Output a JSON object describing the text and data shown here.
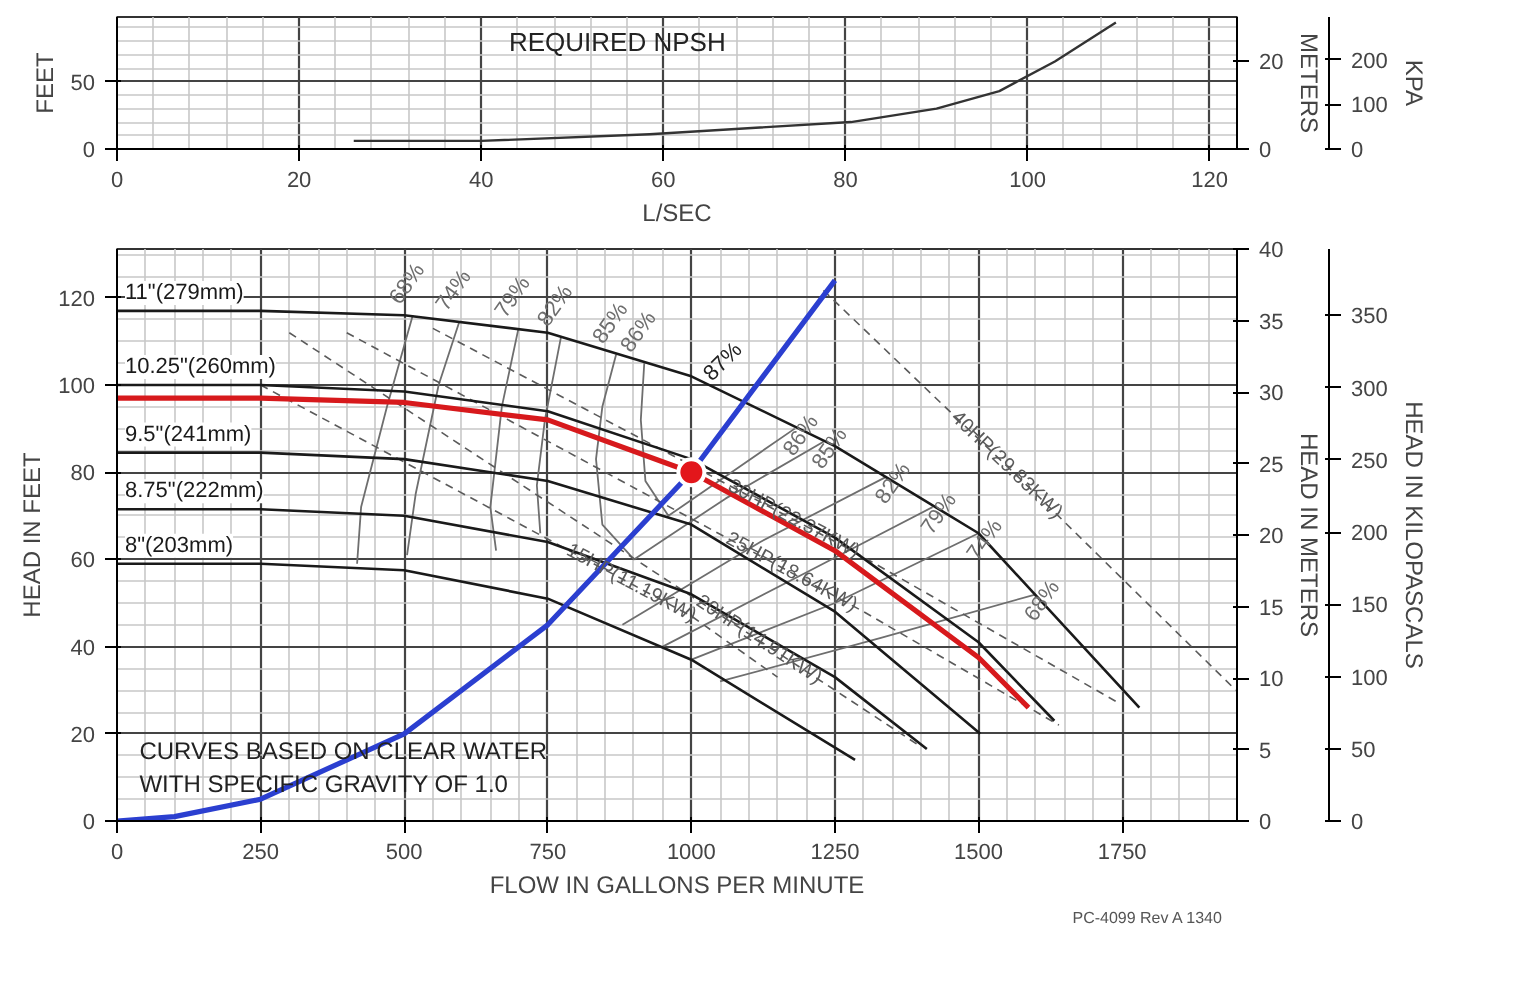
{
  "chart_data": [
    {
      "type": "line",
      "xlabel": "L/SEC",
      "ylabel": "FEET",
      "y2label": "METERS",
      "y3label": "KPA",
      "xlim": [
        0,
        123
      ],
      "xticks": [
        0,
        20,
        40,
        60,
        80,
        100,
        120
      ],
      "ylim": [
        0,
        98
      ],
      "yticks": [
        0,
        50
      ],
      "y2lim": [
        0,
        30
      ],
      "y2ticks": [
        0,
        20
      ],
      "y3lim": [
        0,
        295
      ],
      "y3ticks": [
        0,
        100,
        200
      ],
      "grid": true,
      "annotations": [
        "REQUIRED NPSH"
      ],
      "series": [
        {
          "color": "#333333",
          "line_style": "solid",
          "x": [
            26,
            40,
            58.5,
            80.6,
            90,
            96.9,
            103,
            109.7
          ],
          "values": [
            6,
            6,
            11,
            20,
            30,
            43,
            65,
            94
          ]
        }
      ]
    },
    {
      "type": "line",
      "xlabel": "FLOW IN GALLONS PER MINUTE",
      "ylabel": "HEAD IN FEET",
      "y2label": "HEAD IN METERS",
      "y3label": "HEAD IN KILOPASCALS",
      "xlim": [
        0,
        1950
      ],
      "xticks": [
        0,
        250,
        500,
        750,
        1000,
        1250,
        1500,
        1750
      ],
      "ylim": [
        0,
        131.2
      ],
      "yticks": [
        0,
        20,
        40,
        60,
        80,
        100,
        120
      ],
      "y2lim": [
        0,
        40
      ],
      "y2ticks": [
        0,
        5,
        10,
        15,
        20,
        25,
        30,
        35,
        40
      ],
      "y3lim": [
        0,
        396
      ],
      "y3ticks": [
        0,
        50,
        100,
        150,
        200,
        250,
        300,
        350
      ],
      "grid": true,
      "annotations": [
        "CURVES BASED ON CLEAR WATER\nWITH SPECIFIC GRAVITY OF 1.0",
        "PC-4099 Rev A    1340",
        "87%"
      ],
      "series": [
        {
          "name": "68%",
          "color": "#6e6e6e",
          "line_style": "solid",
          "x": [
            515,
            470,
            425,
            418,
            null,
            1050,
            1330,
            1600
          ],
          "values": [
            116,
            95,
            72,
            59,
            null,
            32,
            42,
            52
          ]
        },
        {
          "name": "74%",
          "color": "#6e6e6e",
          "line_style": "solid",
          "x": [
            596,
            560,
            520,
            505,
            null,
            1000,
            1250,
            1500
          ],
          "values": [
            114.5,
            100,
            75,
            61,
            null,
            37,
            50,
            66
          ]
        },
        {
          "name": "79%",
          "color": "#6e6e6e",
          "line_style": "solid",
          "x": [
            699,
            670,
            650,
            660,
            null,
            950,
            1200,
            1420
          ],
          "values": [
            113,
            95,
            72,
            62,
            null,
            40,
            57,
            72
          ]
        },
        {
          "name": "82%",
          "color": "#6e6e6e",
          "line_style": "solid",
          "x": [
            773,
            745,
            731,
            737,
            null,
            880,
            1120,
            1340
          ],
          "values": [
            111,
            92,
            77,
            66,
            null,
            45,
            64,
            79
          ]
        },
        {
          "name": "85%",
          "color": "#6e6e6e",
          "line_style": "solid",
          "x": [
            869,
            845,
            834,
            845,
            900,
            1060,
            1230
          ],
          "values": [
            107,
            95,
            83,
            68,
            60,
            74,
            87
          ]
        },
        {
          "name": "86%",
          "color": "#6e6e6e",
          "line_style": "solid",
          "x": [
            918,
            912,
            920,
            960,
            1070,
            1180
          ],
          "values": [
            105,
            92,
            78,
            70,
            80,
            90
          ]
        },
        {
          "name": "15HP(11.19KW)",
          "color": "#5a5a5a",
          "line_style": "dashed",
          "x": [
            250,
            1000,
            1150
          ],
          "values": [
            100,
            47,
            33
          ]
        },
        {
          "name": "20HP(14.91KW)",
          "color": "#5a5a5a",
          "line_style": "dashed",
          "x": [
            300,
            1250,
            1400
          ],
          "values": [
            112,
            30,
            17
          ]
        },
        {
          "name": "25HP(18.64KW)",
          "color": "#5a5a5a",
          "line_style": "dashed",
          "x": [
            400,
            1300,
            1640
          ],
          "values": [
            112,
            48,
            22
          ]
        },
        {
          "name": "30HP(22.37KW)",
          "color": "#5a5a5a",
          "line_style": "dashed",
          "x": [
            550,
            1280,
            1745
          ],
          "values": [
            113,
            62,
            27
          ]
        },
        {
          "name": "40HP(29.83KW)",
          "color": "#5a5a5a",
          "line_style": "dashed",
          "x": [
            1230,
            1600,
            1948
          ],
          "values": [
            121.7,
            75,
            30
          ]
        },
        {
          "name": "11\"(279mm)",
          "color": "#1a1a1a",
          "line_style": "solid",
          "x": [
            0,
            250,
            500,
            750,
            1000,
            1250,
            1500,
            1780
          ],
          "values": [
            117,
            117,
            116,
            112,
            102,
            86,
            66,
            26
          ]
        },
        {
          "name": "10.25\"(260mm)",
          "color": "#1a1a1a",
          "line_style": "solid",
          "x": [
            0,
            250,
            500,
            750,
            1000,
            1250,
            1500,
            1632
          ],
          "values": [
            100,
            100,
            98.5,
            94,
            83,
            65,
            41,
            23
          ]
        },
        {
          "name": "9.5\"(241mm)",
          "color": "#1a1a1a",
          "line_style": "solid",
          "x": [
            0,
            250,
            500,
            750,
            1000,
            1250,
            1503
          ],
          "values": [
            84.5,
            84.5,
            83,
            78,
            68,
            48,
            20
          ]
        },
        {
          "name": "8.75\"(222mm)",
          "color": "#1a1a1a",
          "line_style": "solid",
          "x": [
            0,
            250,
            500,
            750,
            1000,
            1250,
            1410
          ],
          "values": [
            71.5,
            71.5,
            70,
            64,
            52,
            33,
            16.5
          ]
        },
        {
          "name": "8\"(203mm)",
          "color": "#1a1a1a",
          "line_style": "solid",
          "x": [
            0,
            250,
            500,
            750,
            1000,
            1285
          ],
          "values": [
            59,
            59,
            57.5,
            51,
            37,
            14
          ]
        },
        {
          "color": "#d7191c",
          "line_style": "solid",
          "x": [
            0,
            250,
            500,
            750,
            1000,
            1250,
            1500,
            1587
          ],
          "values": [
            97,
            97,
            96,
            92,
            80,
            62,
            37.5,
            26
          ]
        },
        {
          "color": "#2b3fd0",
          "line_style": "solid",
          "x": [
            0,
            100,
            250,
            500,
            750,
            1000,
            1250
          ],
          "values": [
            0,
            1,
            5,
            20,
            45,
            80,
            124
          ]
        },
        {
          "type": "scatter",
          "marker": "circle",
          "color": "#e3161b",
          "x": [
            1000
          ],
          "values": [
            80
          ]
        }
      ]
    }
  ]
}
